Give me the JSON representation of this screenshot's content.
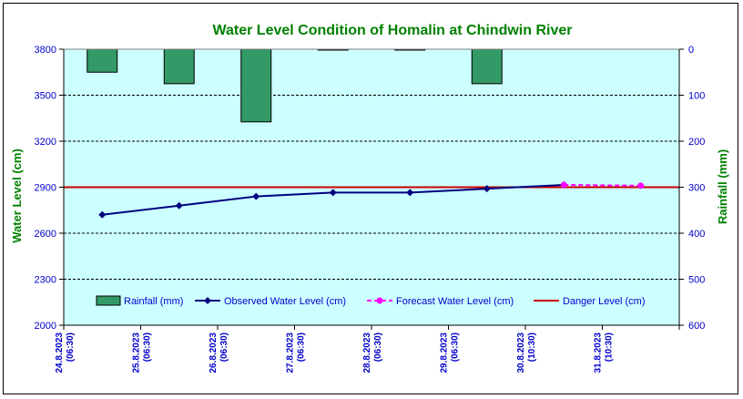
{
  "chart_data": {
    "type": "bar+line",
    "title": "Water Level Condition of Homalin at Chindwin River",
    "ylabel_left": "Water Level (cm)",
    "ylabel_right": "Rainfall (mm)",
    "categories": [
      {
        "date": "24.8.2023",
        "time": "(06:30)"
      },
      {
        "date": "25.8.2023",
        "time": "(06:30)"
      },
      {
        "date": "26.8.2023",
        "time": "(06:30)"
      },
      {
        "date": "27.8.2023",
        "time": "(06:30)"
      },
      {
        "date": "28.8.2023",
        "time": "(06:30)"
      },
      {
        "date": "29.8.2023",
        "time": "(06:30)"
      },
      {
        "date": "30.8.2023",
        "time": "(10:30)"
      },
      {
        "date": "31.8.2023",
        "time": "(10:30)"
      }
    ],
    "left_axis": {
      "min": 2000,
      "max": 3800,
      "ticks": [
        2000,
        2300,
        2600,
        2900,
        3200,
        3500,
        3800
      ]
    },
    "right_axis": {
      "min": 0,
      "max": 600,
      "inverted": true,
      "ticks": [
        0,
        100,
        200,
        300,
        400,
        500,
        600
      ]
    },
    "rainfall": {
      "name": "Rainfall (mm)",
      "color": "#339966",
      "values": [
        50,
        75,
        158,
        2,
        2,
        75,
        0,
        0
      ]
    },
    "observed": {
      "name": "Observed Water Level (cm)",
      "color": "#000080",
      "values": [
        2720,
        2780,
        2840,
        2865,
        2865,
        2890,
        2915,
        null
      ]
    },
    "forecast": {
      "name": "Forecast Water Level (cm)",
      "color": "#ff00ff",
      "values": [
        null,
        null,
        null,
        null,
        null,
        null,
        2915,
        2910
      ]
    },
    "danger": {
      "name": "Danger Level (cm)",
      "color": "#cc0000",
      "value": 2900
    },
    "grid": "horizontal-dashed",
    "legend_position": "bottom-inside",
    "colors": {
      "plot_background": "#ccffff",
      "title": "#008000",
      "axis_text": "#0000cc",
      "axis_title": "#008000"
    }
  }
}
